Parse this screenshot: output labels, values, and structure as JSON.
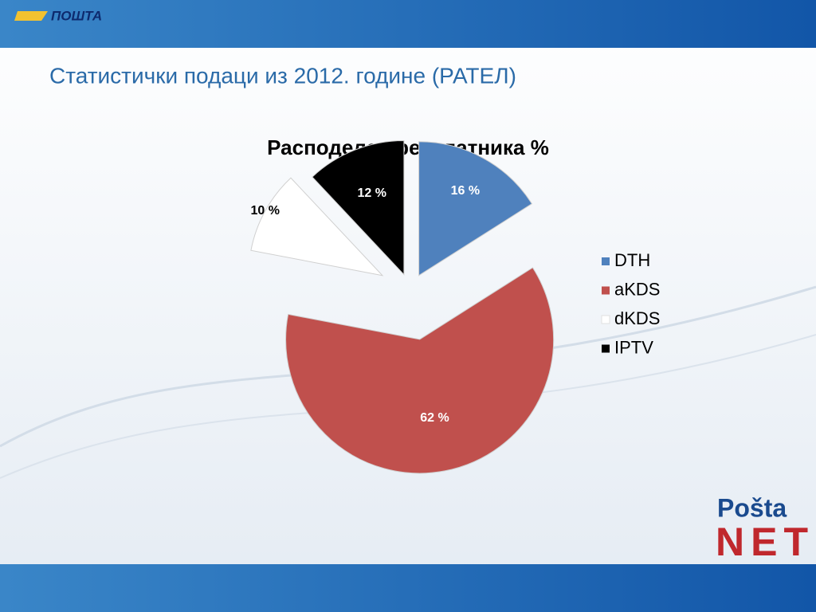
{
  "slide": {
    "logo": "ПОШТА",
    "title": "Статистички подаци из 2012. године  (РАТЕЛ)",
    "brand_top": "Pošta",
    "brand_bottom": "NET"
  },
  "chart_data": {
    "type": "pie",
    "title": "Расподела претплатника %",
    "categories": [
      "DTH",
      "aKDS",
      "dKDS",
      "IPTV"
    ],
    "values": [
      16,
      62,
      10,
      12
    ],
    "value_labels": [
      "16 %",
      "62 %",
      "10 %",
      "12 %"
    ],
    "colors": [
      "#4f81bd",
      "#c0504d",
      "#ffffff",
      "#000000"
    ],
    "legend": "right"
  }
}
